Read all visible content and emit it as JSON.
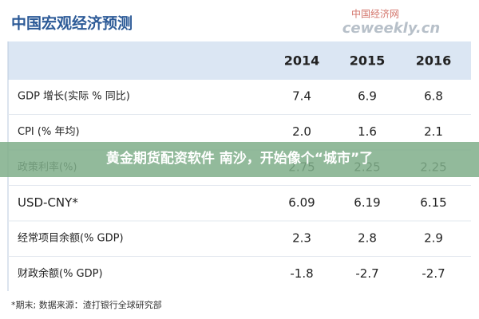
{
  "header": {
    "title": "中国宏观经济预测",
    "watermark": "中国经济网",
    "watermark_url": "ceweekly.cn"
  },
  "table": {
    "columns": [
      "2014",
      "2015",
      "2016"
    ],
    "rows": [
      [
        "GDP 增长(实际 % 同比)",
        "7.4",
        "6.9",
        "6.8"
      ],
      [
        "CPI (% 年均)",
        "2.0",
        "1.6",
        "2.1"
      ],
      [
        "政策利率(%)",
        "2.75",
        "2.25",
        "2.25"
      ],
      [
        "USD-CNY*",
        "6.09",
        "6.19",
        "6.15"
      ],
      [
        "经常项目余额(% GDP)",
        "2.3",
        "2.8",
        "2.9"
      ],
      [
        "财政余额(% GDP)",
        "-1.8",
        "-2.7",
        "-2.7"
      ]
    ]
  },
  "footnote": "*期末;    数据来源：渣打银行全球研究部",
  "banner": "黄金期货配资软件 南沙，开始像个“城市”了"
}
